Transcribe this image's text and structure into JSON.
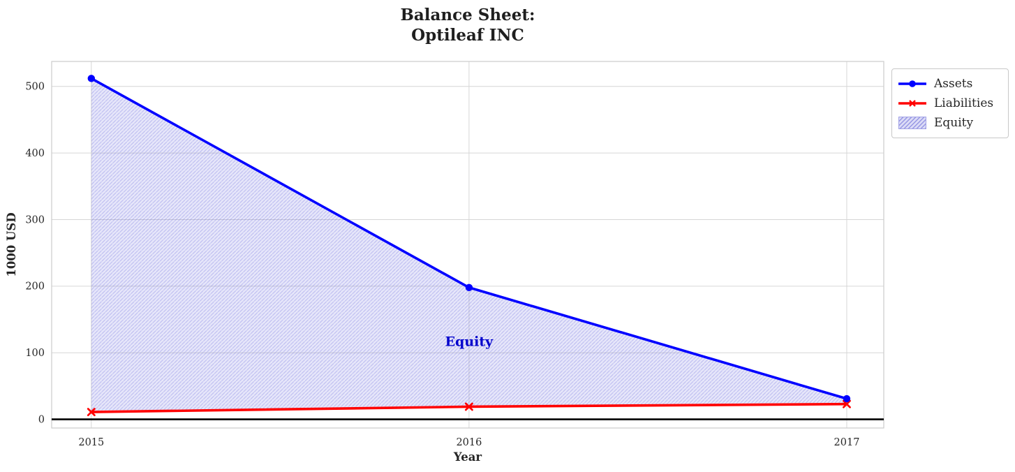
{
  "figure": {
    "background": "#ffffff"
  },
  "chart_data": {
    "type": "line",
    "title": "Balance Sheet:\nOptileaf INC",
    "xlabel": "Year",
    "ylabel": "1000 USD",
    "x": [
      2015,
      2016,
      2017
    ],
    "x_tick_labels": [
      "2015",
      "2016",
      "2017"
    ],
    "y_ticks": [
      0,
      100,
      200,
      300,
      400,
      500
    ],
    "xlim": [
      2014.895,
      2017.098
    ],
    "ylim": [
      -13,
      537.5
    ],
    "grid": true,
    "zero_line_y": 0,
    "series": [
      {
        "name": "Assets",
        "color": "#0000ff",
        "marker": "circle",
        "values": [
          512,
          198,
          31
        ]
      },
      {
        "name": "Liabilities",
        "color": "#ff0000",
        "marker": "x",
        "values": [
          11,
          19,
          23
        ]
      }
    ],
    "fill_between": {
      "name": "Equity",
      "lower_series": "Liabilities",
      "upper_series": "Assets",
      "fill_color": "rgba(110,110,228,0.17)",
      "hatch_color": "rgba(85,85,215,0.26)",
      "hatch": "//"
    },
    "annotation": {
      "text": "Equity",
      "x": 2016,
      "y": 110,
      "color": "#0000cc"
    },
    "colors": {
      "grid": "#d6d6d6",
      "plot_border": "#cccccc",
      "zero_line": "#000000",
      "tick_text": "#262626",
      "axis_label_text": "#262626"
    },
    "legend": {
      "position": "upper-right-outside",
      "entries": [
        {
          "label": "Assets",
          "type": "line-circle",
          "color": "#0000ff"
        },
        {
          "label": "Liabilities",
          "type": "line-x",
          "color": "#ff0000"
        },
        {
          "label": "Equity",
          "type": "hatch-patch",
          "fill": "#dcdcf6",
          "hatch": "#9595e3",
          "border": "#a2a2e6"
        }
      ]
    }
  }
}
